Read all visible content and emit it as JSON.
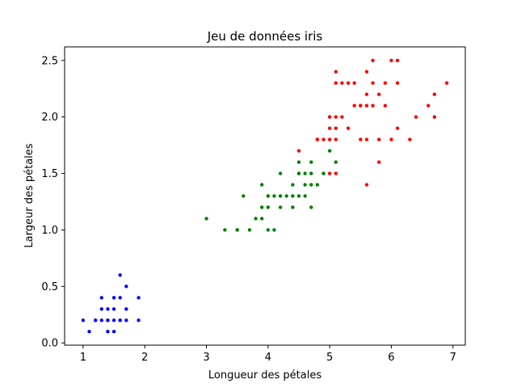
{
  "chart_data": {
    "type": "scatter",
    "title": "Jeu de données iris",
    "xlabel": "Longueur des pétales",
    "ylabel": "Largeur des pétales",
    "xlim": [
      0.7,
      7.2
    ],
    "ylim": [
      -0.02,
      2.62
    ],
    "xticks": [
      1,
      2,
      3,
      4,
      5,
      6,
      7
    ],
    "xtick_labels": [
      "1",
      "2",
      "3",
      "4",
      "5",
      "6",
      "7"
    ],
    "yticks": [
      0.0,
      0.5,
      1.0,
      1.5,
      2.0,
      2.5
    ],
    "ytick_labels": [
      "0.0",
      "0.5",
      "1.0",
      "1.5",
      "2.0",
      "2.5"
    ],
    "grid": false,
    "series": [
      {
        "color": "#0000ff",
        "points": [
          [
            1.0,
            0.2
          ],
          [
            1.1,
            0.1
          ],
          [
            1.2,
            0.2
          ],
          [
            1.3,
            0.2
          ],
          [
            1.3,
            0.3
          ],
          [
            1.3,
            0.4
          ],
          [
            1.4,
            0.1
          ],
          [
            1.4,
            0.2
          ],
          [
            1.4,
            0.3
          ],
          [
            1.5,
            0.1
          ],
          [
            1.5,
            0.2
          ],
          [
            1.5,
            0.4
          ],
          [
            1.6,
            0.2
          ],
          [
            1.6,
            0.4
          ],
          [
            1.6,
            0.6
          ],
          [
            1.7,
            0.2
          ],
          [
            1.7,
            0.3
          ],
          [
            1.7,
            0.5
          ],
          [
            1.9,
            0.2
          ],
          [
            1.9,
            0.4
          ],
          [
            1.2,
            0.2
          ],
          [
            1.5,
            0.3
          ],
          [
            1.6,
            0.2
          ],
          [
            1.4,
            0.2
          ]
        ]
      },
      {
        "color": "#008000",
        "points": [
          [
            3.0,
            1.1
          ],
          [
            3.3,
            1.0
          ],
          [
            3.5,
            1.0
          ],
          [
            3.6,
            1.3
          ],
          [
            3.7,
            1.0
          ],
          [
            3.8,
            1.1
          ],
          [
            3.9,
            1.1
          ],
          [
            3.9,
            1.2
          ],
          [
            3.9,
            1.4
          ],
          [
            4.0,
            1.0
          ],
          [
            4.0,
            1.2
          ],
          [
            4.0,
            1.3
          ],
          [
            4.1,
            1.0
          ],
          [
            4.1,
            1.3
          ],
          [
            4.2,
            1.2
          ],
          [
            4.2,
            1.3
          ],
          [
            4.2,
            1.5
          ],
          [
            4.3,
            1.3
          ],
          [
            4.4,
            1.2
          ],
          [
            4.4,
            1.3
          ],
          [
            4.4,
            1.4
          ],
          [
            4.5,
            1.3
          ],
          [
            4.5,
            1.5
          ],
          [
            4.5,
            1.6
          ],
          [
            4.6,
            1.3
          ],
          [
            4.6,
            1.4
          ],
          [
            4.6,
            1.5
          ],
          [
            4.7,
            1.2
          ],
          [
            4.7,
            1.4
          ],
          [
            4.7,
            1.5
          ],
          [
            4.7,
            1.6
          ],
          [
            4.8,
            1.4
          ],
          [
            4.8,
            1.8
          ],
          [
            4.9,
            1.5
          ],
          [
            5.0,
            1.7
          ],
          [
            5.1,
            1.6
          ],
          [
            4.0,
            1.3
          ],
          [
            4.5,
            1.5
          ],
          [
            3.5,
            1.0
          ],
          [
            4.9,
            1.5
          ]
        ]
      },
      {
        "color": "#ff0000",
        "points": [
          [
            4.5,
            1.7
          ],
          [
            4.8,
            1.8
          ],
          [
            4.9,
            1.8
          ],
          [
            5.0,
            1.5
          ],
          [
            5.0,
            1.9
          ],
          [
            5.0,
            2.0
          ],
          [
            5.1,
            1.5
          ],
          [
            5.1,
            1.8
          ],
          [
            5.1,
            1.9
          ],
          [
            5.1,
            2.0
          ],
          [
            5.1,
            2.3
          ],
          [
            5.1,
            2.4
          ],
          [
            5.2,
            2.0
          ],
          [
            5.2,
            2.3
          ],
          [
            5.3,
            1.9
          ],
          [
            5.3,
            2.3
          ],
          [
            5.4,
            2.1
          ],
          [
            5.4,
            2.3
          ],
          [
            5.5,
            1.8
          ],
          [
            5.5,
            2.1
          ],
          [
            5.6,
            1.4
          ],
          [
            5.6,
            1.8
          ],
          [
            5.6,
            2.1
          ],
          [
            5.6,
            2.2
          ],
          [
            5.6,
            2.4
          ],
          [
            5.7,
            2.1
          ],
          [
            5.7,
            2.3
          ],
          [
            5.7,
            2.5
          ],
          [
            5.8,
            1.6
          ],
          [
            5.8,
            2.2
          ],
          [
            5.9,
            2.1
          ],
          [
            5.9,
            2.3
          ],
          [
            6.0,
            1.8
          ],
          [
            6.0,
            2.5
          ],
          [
            6.1,
            1.9
          ],
          [
            6.1,
            2.3
          ],
          [
            6.1,
            2.5
          ],
          [
            6.3,
            1.8
          ],
          [
            6.4,
            2.0
          ],
          [
            6.6,
            2.1
          ],
          [
            6.7,
            2.0
          ],
          [
            6.7,
            2.2
          ],
          [
            6.9,
            2.3
          ],
          [
            5.5,
            2.1
          ],
          [
            5.8,
            1.8
          ],
          [
            5.0,
            1.8
          ]
        ]
      }
    ]
  }
}
